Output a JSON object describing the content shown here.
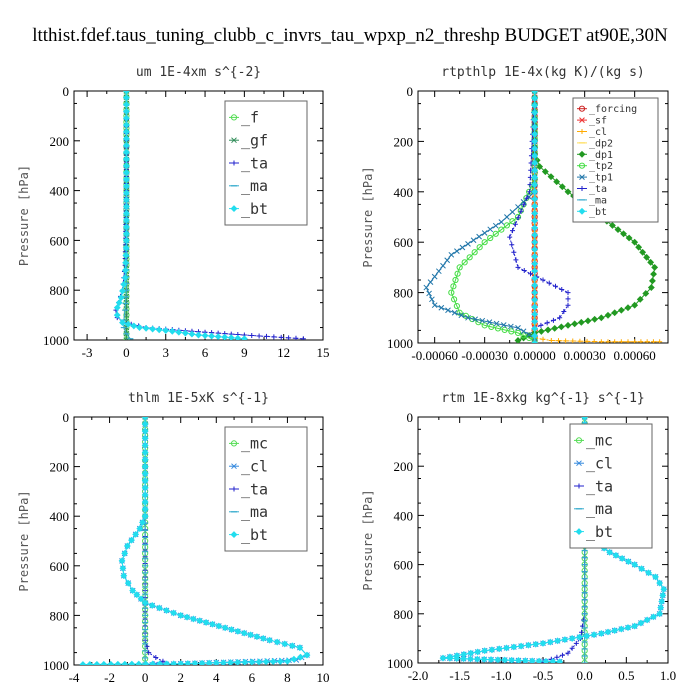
{
  "title": "ltthist.fdef.taus_tuning_clubb_c_invrs_tau_wpxp_n2_threshp  BUDGET at90E,30N",
  "chart_data": [
    {
      "type": "line",
      "title": "um  1E-4xm s^{-2}",
      "ylabel": "Pressure [hPa]",
      "xlim": [
        -4,
        15
      ],
      "ylim": [
        1000,
        0
      ],
      "y_reversed": true,
      "xticks": [
        -3,
        0,
        3,
        6,
        9,
        12,
        15
      ],
      "xtick_labels": [
        "-3",
        "0",
        "3",
        "6",
        "9",
        "12",
        "15"
      ],
      "yticks": [
        0,
        200,
        400,
        600,
        800,
        1000
      ],
      "ytick_labels": [
        "0",
        "200",
        "400",
        "600",
        "800",
        "1000"
      ],
      "grid": false,
      "legend_position": "top-right",
      "legend_font": 15,
      "series": [
        {
          "name": "_f",
          "color": "#55dd55",
          "marker": "circle",
          "x": [
            0,
            0,
            0,
            0,
            0,
            0,
            0,
            0,
            0,
            0,
            0,
            0
          ],
          "y": [
            0,
            100,
            200,
            300,
            400,
            500,
            600,
            700,
            800,
            900,
            950,
            1000
          ]
        },
        {
          "name": "_gf",
          "color": "#2e8b57",
          "marker": "x",
          "x": [
            0,
            0,
            0,
            0,
            0,
            0,
            0,
            0,
            0,
            0,
            0,
            0
          ],
          "y": [
            0,
            100,
            200,
            300,
            400,
            500,
            600,
            700,
            800,
            900,
            950,
            1000
          ]
        },
        {
          "name": "_ta",
          "color": "#2222cc",
          "marker": "plus",
          "x": [
            0,
            0,
            -0.1,
            -0.3,
            -0.6,
            -0.8,
            -0.7,
            -0.2,
            1.5,
            5,
            9,
            13.5
          ],
          "y": [
            0,
            400,
            700,
            800,
            850,
            880,
            910,
            930,
            950,
            965,
            980,
            995
          ]
        },
        {
          "name": "_ma",
          "color": "#33aacc",
          "marker": "dash",
          "x": [
            0,
            0,
            0,
            -0.1,
            -0.2,
            -0.2,
            0,
            0.3
          ],
          "y": [
            0,
            500,
            800,
            880,
            920,
            950,
            975,
            995
          ]
        },
        {
          "name": "_bt",
          "color": "#22ddee",
          "marker": "diamond",
          "x": [
            0,
            0,
            0,
            -0.1,
            -0.4,
            -0.7,
            -0.7,
            -0.3,
            1,
            3.5,
            5.5,
            9
          ],
          "y": [
            0,
            300,
            600,
            750,
            830,
            870,
            900,
            930,
            950,
            965,
            980,
            995
          ]
        }
      ]
    },
    {
      "type": "line",
      "title": "rtpthlp  1E-4x(kg K)/(kg s)",
      "ylabel": "Pressure [hPa]",
      "xlim": [
        -0.0007,
        0.0008
      ],
      "ylim": [
        1000,
        0
      ],
      "y_reversed": true,
      "xticks": [
        -0.0006,
        -0.0003,
        0,
        0.0003,
        0.0006
      ],
      "xtick_labels": [
        "-0.00060",
        "-0.00030",
        "0.00000",
        "0.00030",
        "0.00060"
      ],
      "yticks": [
        0,
        200,
        400,
        600,
        800,
        1000
      ],
      "ytick_labels": [
        "0",
        "200",
        "400",
        "600",
        "800",
        "1000"
      ],
      "grid": false,
      "legend_position": "top-right",
      "legend_font": 10,
      "series": [
        {
          "name": "_forcing",
          "color": "#cc2222",
          "marker": "circle",
          "x": [
            0,
            0,
            0,
            0,
            0,
            0,
            0,
            0,
            0,
            0,
            0
          ],
          "y": [
            0,
            100,
            200,
            300,
            400,
            500,
            600,
            700,
            800,
            900,
            1000
          ]
        },
        {
          "name": "_sf",
          "color": "#ee3333",
          "marker": "x",
          "x": [
            0,
            0,
            0,
            0,
            0,
            0,
            0,
            0,
            0,
            0,
            0
          ],
          "y": [
            0,
            100,
            200,
            300,
            400,
            500,
            600,
            700,
            800,
            900,
            1000
          ]
        },
        {
          "name": "_cl",
          "color": "#ffaa00",
          "marker": "plus",
          "x": [
            0,
            0,
            0,
            0,
            0.0001,
            0.0004,
            0.0006,
            0.00075
          ],
          "y": [
            0,
            500,
            900,
            980,
            990,
            995,
            995,
            995
          ]
        },
        {
          "name": "_dp2",
          "color": "#ffdd55",
          "marker": "dash",
          "x": [
            0,
            0,
            0,
            0,
            0,
            0
          ],
          "y": [
            0,
            200,
            400,
            600,
            800,
            1000
          ]
        },
        {
          "name": "_dp1",
          "color": "#229922",
          "marker": "diamond",
          "x": [
            0,
            0,
            3e-05,
            0.0002,
            0.0004,
            0.0006,
            0.00072,
            0.0007,
            0.0006,
            0.0004,
            0.0002,
            0,
            -0.0001
          ],
          "y": [
            0,
            250,
            300,
            400,
            500,
            600,
            700,
            780,
            850,
            900,
            930,
            960,
            990
          ]
        },
        {
          "name": "_tp2",
          "color": "#44dd44",
          "marker": "circle",
          "x": [
            0,
            0,
            -0.0001,
            -0.0003,
            -0.00045,
            -0.0005,
            -0.00045,
            -0.0003,
            -0.0001,
            0
          ],
          "y": [
            0,
            350,
            500,
            600,
            700,
            800,
            880,
            930,
            960,
            990
          ]
        },
        {
          "name": "_tp1",
          "color": "#2277aa",
          "marker": "x",
          "x": [
            0,
            0,
            -0.0002,
            -0.0005,
            -0.00065,
            -0.0006,
            -0.0004,
            -0.0001,
            0
          ],
          "y": [
            0,
            400,
            520,
            650,
            780,
            850,
            900,
            940,
            980
          ]
        },
        {
          "name": "_ta",
          "color": "#2222cc",
          "marker": "plus",
          "x": [
            0,
            -3e-05,
            -0.00015,
            -0.0001,
            0.0002,
            0.0002,
            0.00015,
            0
          ],
          "y": [
            0,
            400,
            580,
            700,
            800,
            850,
            900,
            940
          ]
        },
        {
          "name": "_ma",
          "color": "#33aacc",
          "marker": "dash",
          "x": [
            0,
            0,
            0,
            0
          ],
          "y": [
            0,
            400,
            800,
            1000
          ]
        },
        {
          "name": "_bt",
          "color": "#22ddee",
          "marker": "diamond",
          "x": [
            0,
            0,
            0,
            0
          ],
          "y": [
            0,
            400,
            800,
            1000
          ]
        }
      ]
    },
    {
      "type": "line",
      "title": "thlm  1E-5xK s^{-1}",
      "ylabel": "Pressure [hPa]",
      "xlim": [
        -4,
        10
      ],
      "ylim": [
        1000,
        0
      ],
      "y_reversed": true,
      "xticks": [
        -4,
        -2,
        0,
        2,
        4,
        6,
        8,
        10
      ],
      "xtick_labels": [
        "-4",
        "-2",
        "0",
        "2",
        "4",
        "6",
        "8",
        "10"
      ],
      "yticks": [
        0,
        200,
        400,
        600,
        800,
        1000
      ],
      "ytick_labels": [
        "0",
        "200",
        "400",
        "600",
        "800",
        "1000"
      ],
      "grid": false,
      "legend_position": "top-right",
      "legend_font": 15,
      "series": [
        {
          "name": "_mc",
          "color": "#55dd55",
          "marker": "circle",
          "x": [
            0,
            0,
            0,
            0,
            0,
            0,
            0,
            0,
            0,
            0,
            0
          ],
          "y": [
            0,
            100,
            200,
            300,
            400,
            500,
            600,
            700,
            800,
            900,
            1000
          ]
        },
        {
          "name": "_cl",
          "color": "#3388dd",
          "marker": "x",
          "x": [
            0,
            0,
            -0.3,
            -1,
            -1.3,
            -1.2,
            -0.7,
            0,
            2,
            4.5,
            7,
            8.7,
            9.1,
            8.5,
            4,
            0
          ],
          "y": [
            0,
            400,
            450,
            520,
            580,
            640,
            700,
            750,
            800,
            850,
            900,
            930,
            960,
            980,
            990,
            1000
          ]
        },
        {
          "name": "_ta",
          "color": "#2222cc",
          "marker": "plus",
          "x": [
            0,
            0,
            0,
            0,
            0.2,
            0.6,
            1,
            0.5,
            0
          ],
          "y": [
            0,
            400,
            700,
            900,
            950,
            970,
            985,
            995,
            1000
          ]
        },
        {
          "name": "_ma",
          "color": "#33aacc",
          "marker": "dash",
          "x": [
            0,
            0,
            0,
            0
          ],
          "y": [
            0,
            400,
            800,
            1000
          ]
        },
        {
          "name": "_bt",
          "color": "#22ddee",
          "marker": "diamond",
          "x": [
            0,
            0,
            -0.3,
            -1,
            -1.3,
            -1.2,
            -0.7,
            0,
            2,
            4.5,
            7,
            8.7,
            9.1,
            8,
            2,
            -3.5
          ],
          "y": [
            0,
            400,
            450,
            520,
            580,
            640,
            700,
            750,
            800,
            850,
            900,
            930,
            960,
            985,
            995,
            998
          ]
        }
      ]
    },
    {
      "type": "line",
      "title": "rtm  1E-8xkg kg^{-1} s^{-1}",
      "ylabel": "Pressure [hPa]",
      "xlim": [
        -2.0,
        1.0
      ],
      "ylim": [
        1000,
        0
      ],
      "y_reversed": true,
      "xticks": [
        -2.0,
        -1.5,
        -1.0,
        -0.5,
        0.0,
        0.5,
        1.0
      ],
      "xtick_labels": [
        "-2.0",
        "-1.5",
        "-1.0",
        "-0.5",
        "0.0",
        "0.5",
        "1.0"
      ],
      "yticks": [
        0,
        200,
        400,
        600,
        800,
        1000
      ],
      "ytick_labels": [
        "0",
        "200",
        "400",
        "600",
        "800",
        "1000"
      ],
      "grid": false,
      "legend_position": "top-right",
      "legend_font": 15,
      "series": [
        {
          "name": "_mc",
          "color": "#55dd55",
          "marker": "circle",
          "x": [
            0,
            0,
            0,
            0,
            0,
            0,
            0,
            0,
            0,
            0,
            0
          ],
          "y": [
            0,
            100,
            200,
            300,
            400,
            500,
            600,
            700,
            800,
            900,
            1000
          ]
        },
        {
          "name": "_cl",
          "color": "#3388dd",
          "marker": "x",
          "x": [
            0,
            0,
            0.02,
            0.05,
            0.03,
            0.05,
            0.1,
            0.3,
            0.6,
            0.85,
            0.95,
            0.9,
            0.6,
            0.2,
            -0.5,
            -1.2,
            -1.7,
            -0.3
          ],
          "y": [
            0,
            150,
            200,
            300,
            400,
            450,
            500,
            550,
            600,
            650,
            700,
            800,
            850,
            880,
            920,
            950,
            980,
            995
          ]
        },
        {
          "name": "_ta",
          "color": "#2222cc",
          "marker": "plus",
          "x": [
            0,
            0,
            0,
            -0.05,
            -0.2,
            -0.4,
            -0.5
          ],
          "y": [
            0,
            400,
            800,
            900,
            960,
            985,
            995
          ]
        },
        {
          "name": "_ma",
          "color": "#33aacc",
          "marker": "dash",
          "x": [
            0,
            0,
            0,
            0
          ],
          "y": [
            0,
            400,
            800,
            1000
          ]
        },
        {
          "name": "_bt",
          "color": "#22ddee",
          "marker": "diamond",
          "x": [
            0,
            0,
            0.02,
            0.05,
            0.03,
            0.05,
            0.1,
            0.3,
            0.6,
            0.85,
            0.95,
            0.9,
            0.6,
            0.2,
            -0.5,
            -1.2,
            -1.7,
            -0.3
          ],
          "y": [
            0,
            150,
            200,
            300,
            400,
            450,
            500,
            550,
            600,
            650,
            700,
            800,
            850,
            880,
            920,
            950,
            980,
            995
          ]
        }
      ]
    }
  ]
}
